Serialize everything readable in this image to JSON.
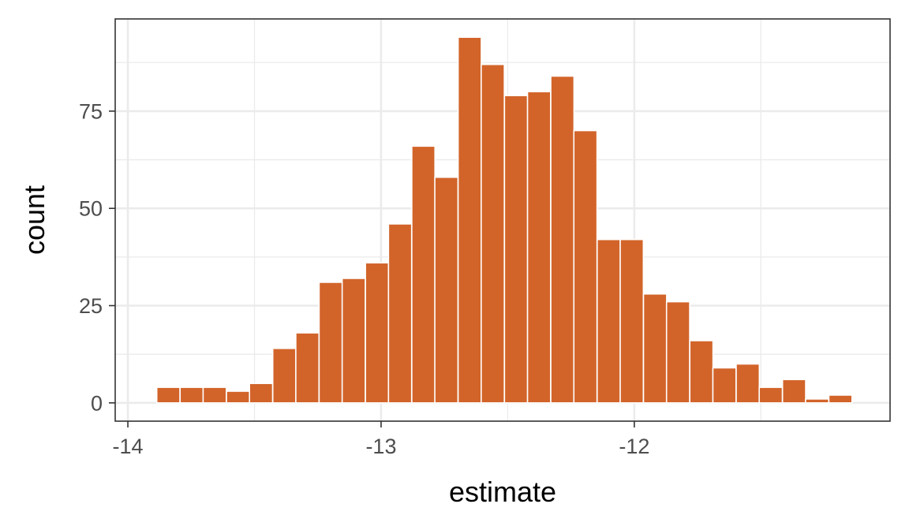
{
  "chart_data": {
    "type": "bar",
    "xlabel": "estimate",
    "ylabel": "count",
    "xlim": [
      -14.05,
      -10.99
    ],
    "ylim": [
      -4.7,
      98.7
    ],
    "x_ticks": [
      -14,
      -13,
      -12
    ],
    "x_tick_labels": [
      "-14",
      "-13",
      "-12"
    ],
    "x_minor_ticks": [
      -13.5,
      -12.5,
      -11.5
    ],
    "y_ticks": [
      0,
      25,
      50,
      75
    ],
    "y_tick_labels": [
      "0",
      "25",
      "50",
      "75"
    ],
    "y_minor_ticks": [
      12.5,
      37.5,
      62.5,
      87.5
    ],
    "bin_width": 0.0915,
    "bin_centers": [
      -13.84,
      -13.748,
      -13.657,
      -13.565,
      -13.474,
      -13.382,
      -13.291,
      -13.199,
      -13.108,
      -13.016,
      -12.925,
      -12.833,
      -12.742,
      -12.65,
      -12.559,
      -12.467,
      -12.376,
      -12.284,
      -12.193,
      -12.101,
      -12.01,
      -11.918,
      -11.827,
      -11.735,
      -11.644,
      -11.552,
      -11.461,
      -11.369,
      -11.278,
      -11.186
    ],
    "values": [
      4,
      4,
      4,
      3,
      5,
      14,
      18,
      31,
      32,
      36,
      46,
      66,
      58,
      94,
      87,
      79,
      80,
      84,
      70,
      42,
      42,
      28,
      26,
      16,
      9,
      10,
      4,
      6,
      1,
      2
    ],
    "bar_color": "#d2642a",
    "bar_outline": "#ffffff",
    "grid": true,
    "panel_border": "#333333",
    "grid_major_color": "#ebebeb",
    "grid_minor_color": "#ebebeb"
  }
}
